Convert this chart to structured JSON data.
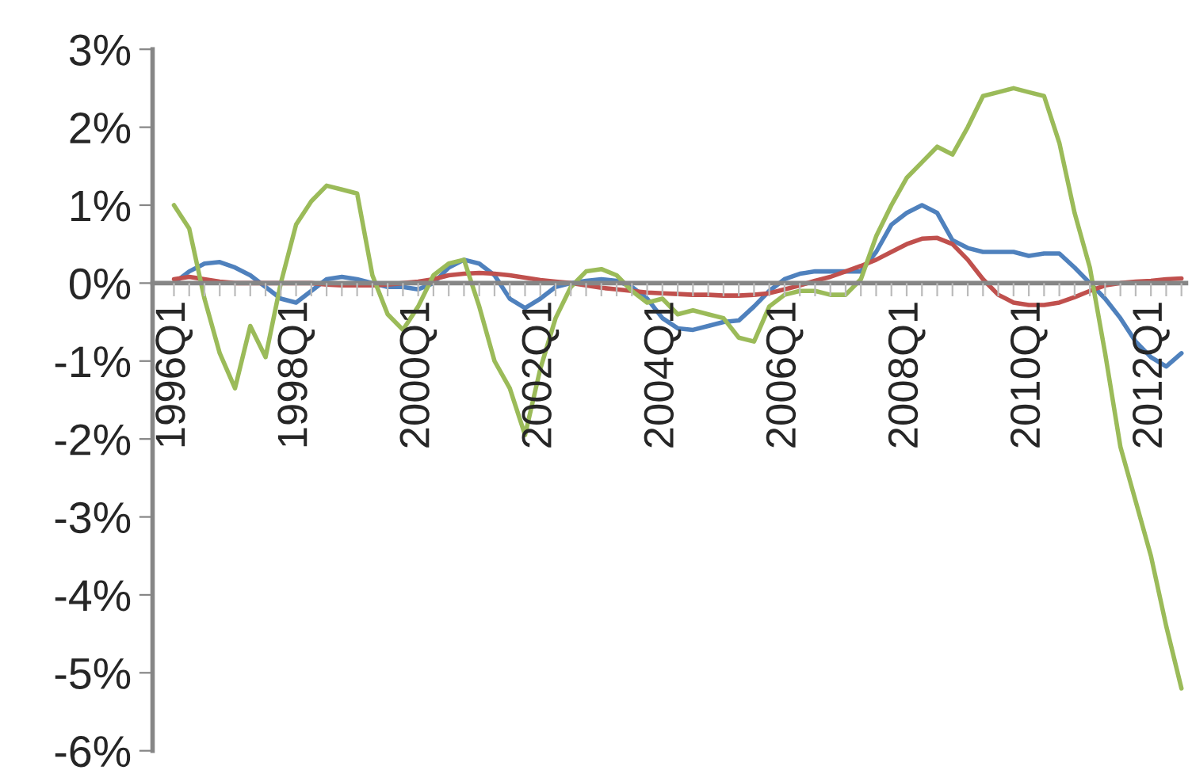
{
  "chart_data": {
    "type": "line",
    "categories": [
      "1996Q1",
      null,
      null,
      null,
      null,
      null,
      null,
      null,
      "1998Q1",
      null,
      null,
      null,
      null,
      null,
      null,
      null,
      "2000Q1",
      null,
      null,
      null,
      null,
      null,
      null,
      null,
      "2002Q1",
      null,
      null,
      null,
      null,
      null,
      null,
      null,
      "2004Q1",
      null,
      null,
      null,
      null,
      null,
      null,
      null,
      "2006Q1",
      null,
      null,
      null,
      null,
      null,
      null,
      null,
      "2008Q1",
      null,
      null,
      null,
      null,
      null,
      null,
      null,
      "2010Q1",
      null,
      null,
      null,
      null,
      null,
      null,
      null,
      "2012Q1",
      null,
      null
    ],
    "series": [
      {
        "color": "#4f81bd",
        "values": [
          0,
          0.15,
          0.25,
          0.27,
          0.2,
          0.1,
          -0.05,
          -0.2,
          -0.25,
          -0.1,
          0.05,
          0.08,
          0.05,
          0.0,
          -0.05,
          -0.05,
          -0.08,
          0.0,
          0.2,
          0.3,
          0.25,
          0.1,
          -0.2,
          -0.32,
          -0.2,
          -0.05,
          0.0,
          0.03,
          0.05,
          0.03,
          -0.05,
          -0.2,
          -0.45,
          -0.58,
          -0.6,
          -0.55,
          -0.5,
          -0.48,
          -0.3,
          -0.1,
          0.05,
          0.12,
          0.15,
          0.15,
          0.15,
          0.15,
          0.4,
          0.75,
          0.9,
          1.0,
          0.9,
          0.55,
          0.45,
          0.4,
          0.4,
          0.4,
          0.35,
          0.38,
          0.38,
          0.2,
          0.0,
          -0.2,
          -0.45,
          -0.75,
          -0.95,
          -1.07,
          -0.9
        ]
      },
      {
        "color": "#c0504d",
        "values": [
          0.05,
          0.08,
          0.05,
          0.02,
          0.0,
          0.0,
          0.0,
          0.0,
          0.0,
          0.0,
          -0.02,
          -0.03,
          -0.03,
          -0.03,
          -0.02,
          0.0,
          0.02,
          0.05,
          0.1,
          0.12,
          0.13,
          0.12,
          0.1,
          0.07,
          0.04,
          0.02,
          0.0,
          -0.03,
          -0.06,
          -0.08,
          -0.1,
          -0.12,
          -0.13,
          -0.14,
          -0.15,
          -0.15,
          -0.16,
          -0.16,
          -0.15,
          -0.13,
          -0.08,
          -0.03,
          0.03,
          0.08,
          0.15,
          0.22,
          0.3,
          0.4,
          0.5,
          0.57,
          0.58,
          0.5,
          0.3,
          0.05,
          -0.15,
          -0.25,
          -0.28,
          -0.28,
          -0.25,
          -0.18,
          -0.1,
          -0.03,
          0.0,
          0.02,
          0.03,
          0.05,
          0.06
        ]
      },
      {
        "color": "#9bbb59",
        "values": [
          1.0,
          0.7,
          -0.2,
          -0.9,
          -1.35,
          -0.55,
          -0.95,
          0.0,
          0.75,
          1.05,
          1.25,
          1.2,
          1.15,
          0.1,
          -0.4,
          -0.6,
          -0.3,
          0.1,
          0.25,
          0.3,
          -0.3,
          -1.0,
          -1.35,
          -1.95,
          -1.1,
          -0.45,
          -0.05,
          0.15,
          0.18,
          0.1,
          -0.1,
          -0.25,
          -0.2,
          -0.4,
          -0.35,
          -0.4,
          -0.45,
          -0.7,
          -0.75,
          -0.3,
          -0.15,
          -0.1,
          -0.1,
          -0.15,
          -0.15,
          0.05,
          0.6,
          1.0,
          1.35,
          1.55,
          1.75,
          1.65,
          2.0,
          2.4,
          2.45,
          2.5,
          2.45,
          2.4,
          1.8,
          0.9,
          0.2,
          -0.9,
          -2.1,
          -2.8,
          -3.5,
          -4.4,
          -5.2
        ]
      }
    ],
    "ylim": [
      -6,
      3
    ],
    "yticks": [
      {
        "value": 3,
        "label": "3%"
      },
      {
        "value": 2,
        "label": "2%"
      },
      {
        "value": 1,
        "label": "1%"
      },
      {
        "value": 0,
        "label": "0%"
      },
      {
        "value": -1,
        "label": "-1%"
      },
      {
        "value": -2,
        "label": "-2%"
      },
      {
        "value": -3,
        "label": "-3%"
      },
      {
        "value": -4,
        "label": "-4%"
      },
      {
        "value": -5,
        "label": "-5%"
      },
      {
        "value": -6,
        "label": "-6%"
      }
    ],
    "grid": false,
    "marker": "none",
    "line_style": "solid"
  }
}
